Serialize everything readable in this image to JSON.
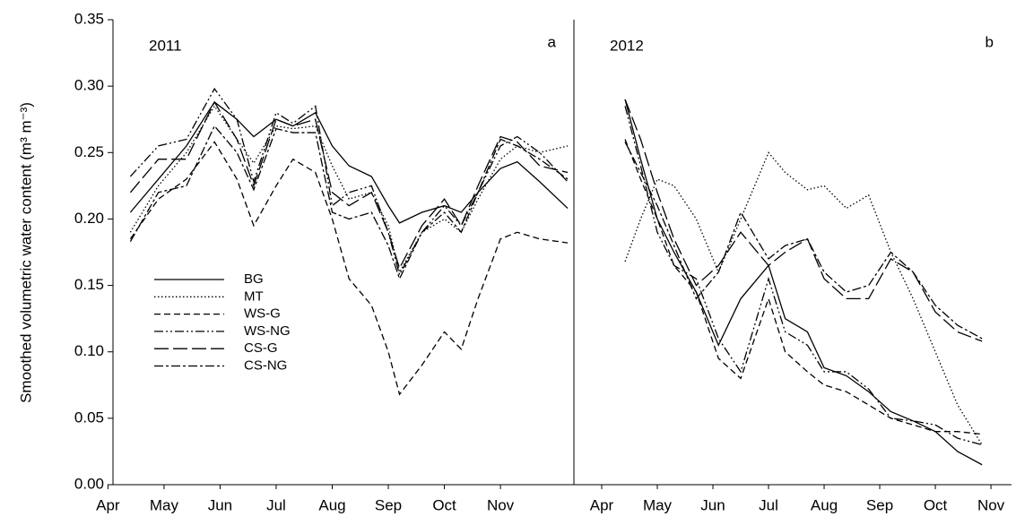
{
  "chart_data": [
    {
      "type": "line",
      "annotation": "2011",
      "panel_label": "a",
      "y_label": "Smoothed volumetric water content (m³ m⁻³)",
      "xlim": [
        4.09,
        12.31
      ],
      "xticks": [
        {
          "value": 4,
          "label": "Apr"
        },
        {
          "value": 5,
          "label": "May"
        },
        {
          "value": 6,
          "label": "Jun"
        },
        {
          "value": 7,
          "label": "Jul"
        },
        {
          "value": 8,
          "label": "Aug"
        },
        {
          "value": 9,
          "label": "Sep"
        },
        {
          "value": 10,
          "label": "Oct"
        },
        {
          "value": 11,
          "label": "Nov"
        }
      ],
      "ylim": [
        0,
        0.35
      ],
      "yticks": [
        {
          "value": 0,
          "label": "0.00"
        },
        {
          "value": 0.05,
          "label": "0.05"
        },
        {
          "value": 0.1,
          "label": "0.10"
        },
        {
          "value": 0.15,
          "label": "0.15"
        },
        {
          "value": 0.2,
          "label": "0.20"
        },
        {
          "value": 0.25,
          "label": "0.25"
        },
        {
          "value": 0.3,
          "label": "0.30"
        },
        {
          "value": 0.35,
          "label": "0.35"
        }
      ],
      "legend": "lower left",
      "x": [
        4.4,
        4.9,
        5.4,
        5.9,
        6.3,
        6.6,
        7.0,
        7.3,
        7.7,
        8.0,
        8.3,
        8.7,
        9.0,
        9.2,
        9.6,
        10.0,
        10.3,
        10.6,
        11.0,
        11.3,
        11.7,
        12.2
      ],
      "series": [
        {
          "name": "BG",
          "color": "#000000",
          "style": "solid",
          "values": [
            0.205,
            0.23,
            0.255,
            0.288,
            0.275,
            0.262,
            0.275,
            0.27,
            0.28,
            0.255,
            0.24,
            0.232,
            0.21,
            0.197,
            0.205,
            0.21,
            0.205,
            0.22,
            0.238,
            0.243,
            0.228,
            0.208
          ]
        },
        {
          "name": "MT",
          "color": "#000000",
          "style": "dotted",
          "values": [
            0.19,
            0.225,
            0.25,
            0.285,
            0.26,
            0.242,
            0.27,
            0.268,
            0.27,
            0.24,
            0.215,
            0.22,
            0.195,
            0.16,
            0.19,
            0.2,
            0.19,
            0.215,
            0.245,
            0.255,
            0.25,
            0.255
          ]
        },
        {
          "name": "WS-G",
          "color": "#000000",
          "style": "dashed",
          "values": [
            0.185,
            0.215,
            0.23,
            0.258,
            0.23,
            0.195,
            0.225,
            0.245,
            0.235,
            0.2,
            0.155,
            0.135,
            0.1,
            0.068,
            0.09,
            0.115,
            0.102,
            0.14,
            0.185,
            0.19,
            0.185,
            0.182
          ]
        },
        {
          "name": "WS-NG",
          "color": "#000000",
          "style": "dash-dot-dot",
          "values": [
            0.232,
            0.255,
            0.26,
            0.298,
            0.275,
            0.228,
            0.28,
            0.272,
            0.285,
            0.21,
            0.22,
            0.225,
            0.19,
            0.158,
            0.19,
            0.21,
            0.195,
            0.22,
            0.255,
            0.262,
            0.25,
            0.228
          ]
        },
        {
          "name": "CS-G",
          "color": "#000000",
          "style": "long-dash",
          "values": [
            0.22,
            0.245,
            0.245,
            0.288,
            0.26,
            0.225,
            0.275,
            0.27,
            0.275,
            0.22,
            0.21,
            0.22,
            0.19,
            0.163,
            0.195,
            0.215,
            0.195,
            0.225,
            0.262,
            0.258,
            0.24,
            0.235
          ]
        },
        {
          "name": "CS-NG",
          "color": "#000000",
          "style": "dash-dot",
          "values": [
            0.183,
            0.22,
            0.225,
            0.27,
            0.25,
            0.222,
            0.268,
            0.265,
            0.265,
            0.205,
            0.2,
            0.205,
            0.18,
            0.155,
            0.19,
            0.205,
            0.19,
            0.22,
            0.26,
            0.255,
            0.245,
            0.23
          ]
        }
      ]
    },
    {
      "type": "line",
      "annotation": "2012",
      "panel_label": "b",
      "xlim": [
        3.5,
        11.37
      ],
      "xticks": [
        {
          "value": 4,
          "label": "Apr"
        },
        {
          "value": 5,
          "label": "May"
        },
        {
          "value": 6,
          "label": "Jun"
        },
        {
          "value": 7,
          "label": "Jul"
        },
        {
          "value": 8,
          "label": "Aug"
        },
        {
          "value": 9,
          "label": "Sep"
        },
        {
          "value": 10,
          "label": "Oct"
        },
        {
          "value": 11,
          "label": "Nov"
        }
      ],
      "ylim": [
        0,
        0.35
      ],
      "x": [
        4.42,
        4.7,
        5.0,
        5.3,
        5.7,
        6.1,
        6.5,
        7.0,
        7.3,
        7.7,
        8.0,
        8.4,
        8.8,
        9.2,
        9.6,
        10.0,
        10.4,
        10.84
      ],
      "series": [
        {
          "color": "#000000",
          "style": "solid",
          "values": [
            0.29,
            0.245,
            0.2,
            0.175,
            0.145,
            0.105,
            0.14,
            0.165,
            0.125,
            0.115,
            0.088,
            0.082,
            0.07,
            0.055,
            0.048,
            0.04,
            0.025,
            0.015
          ]
        },
        {
          "color": "#000000",
          "style": "dotted",
          "values": [
            0.168,
            0.2,
            0.23,
            0.225,
            0.2,
            0.16,
            0.2,
            0.25,
            0.235,
            0.222,
            0.225,
            0.208,
            0.218,
            0.175,
            0.14,
            0.1,
            0.06,
            0.03
          ]
        },
        {
          "color": "#000000",
          "style": "dashed",
          "values": [
            0.26,
            0.23,
            0.2,
            0.165,
            0.145,
            0.095,
            0.08,
            0.14,
            0.1,
            0.085,
            0.075,
            0.07,
            0.06,
            0.05,
            0.045,
            0.04,
            0.04,
            0.038
          ]
        },
        {
          "color": "#000000",
          "style": "dash-dot-dot",
          "values": [
            0.285,
            0.24,
            0.19,
            0.165,
            0.155,
            0.11,
            0.085,
            0.155,
            0.115,
            0.105,
            0.085,
            0.085,
            0.072,
            0.05,
            0.048,
            0.045,
            0.035,
            0.03
          ]
        },
        {
          "color": "#000000",
          "style": "long-dash",
          "values": [
            0.29,
            0.26,
            0.22,
            0.185,
            0.15,
            0.165,
            0.19,
            0.165,
            0.175,
            0.185,
            0.155,
            0.14,
            0.14,
            0.17,
            0.16,
            0.13,
            0.115,
            0.108
          ]
        },
        {
          "color": "#000000",
          "style": "dash-dot",
          "values": [
            0.258,
            0.235,
            0.21,
            0.18,
            0.14,
            0.16,
            0.205,
            0.17,
            0.18,
            0.185,
            0.16,
            0.145,
            0.15,
            0.175,
            0.16,
            0.135,
            0.12,
            0.11
          ]
        }
      ]
    }
  ]
}
